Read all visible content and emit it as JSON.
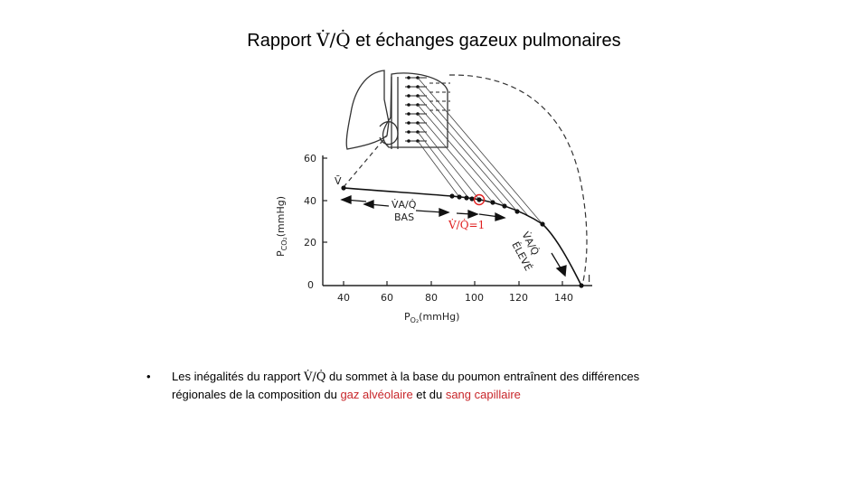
{
  "slide": {
    "title_prefix": "Rapport ",
    "title_symbol": "V̇/Q̇",
    "title_suffix": " et échanges gazeux pulmonaires"
  },
  "diagram": {
    "y_axis_label": "P",
    "y_axis_sub": "CO₂",
    "y_axis_unit": "(mmHg)",
    "x_axis_label": "P",
    "x_axis_sub": "O₂",
    "x_axis_unit": "(mmHg)",
    "y_ticks": [
      "60",
      "40",
      "20",
      "0"
    ],
    "x_ticks": [
      "40",
      "60",
      "80",
      "100",
      "120",
      "140"
    ],
    "point_venous": "V̄",
    "point_inspired": "I",
    "label_low_ratio": "V̇A/Q̇",
    "label_low_word": "BAS",
    "label_high_ratio": "V̇A/Q̇",
    "label_high_word": "ÉLEVÉ",
    "annotation_ratio_one": "V̇/Q̇=1"
  },
  "bullet": {
    "marker": "•",
    "line1_a": "Les inégalités du rapport ",
    "line1_sym": "V̇/Q̇",
    "line1_b": " du sommet à la base du poumon  entraînent des différences",
    "line2_a": "régionales de la composition du ",
    "line2_red1": "gaz alvéolaire",
    "line2_b": " et du ",
    "line2_red2": "sang capillaire"
  },
  "colors": {
    "accent_red": "#c8262a",
    "annotation_red": "#e02020"
  }
}
